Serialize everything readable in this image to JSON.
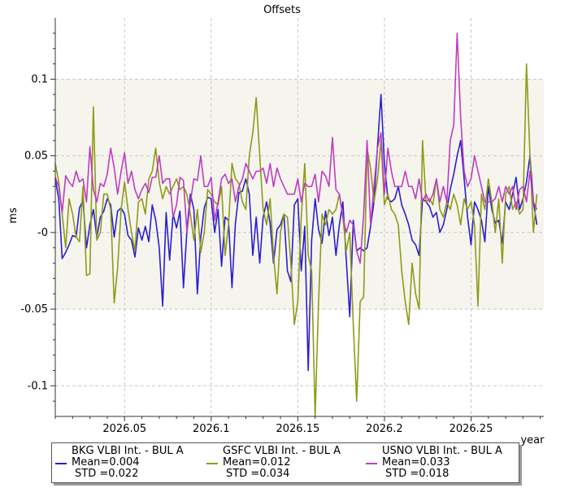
{
  "chart_data": {
    "type": "line",
    "title": "Offsets",
    "xlabel": "year",
    "ylabel": "ms",
    "xlim": [
      2026.01,
      2026.292
    ],
    "ylim": [
      -0.12,
      0.14
    ],
    "xticks": [
      2026.05,
      2026.1,
      2026.15,
      2026.2,
      2026.25
    ],
    "xtick_labels": [
      "2026.05",
      "2026.1",
      "2026.15",
      "2026.2",
      "2026.25"
    ],
    "yticks": [
      -0.1,
      -0.05,
      0,
      0.05,
      0.1
    ],
    "ytick_labels": [
      "-0.1",
      "-0.05",
      "-0",
      "0.05",
      "0.1"
    ],
    "grid": true,
    "legend_position": "bottom",
    "band_range": [
      -0.05,
      0.1
    ],
    "series": [
      {
        "name": "BKG VLBI Int. - BUL A",
        "mean_label": "Mean=0.004",
        "std_label": "STD =0.022",
        "color": "#2a1fd0",
        "x": [
          2026.01,
          2026.012,
          2026.014,
          2026.016,
          2026.018,
          2026.02,
          2026.022,
          2026.024,
          2026.026,
          2026.028,
          2026.03,
          2026.032,
          2026.034,
          2026.036,
          2026.038,
          2026.04,
          2026.042,
          2026.044,
          2026.046,
          2026.048,
          2026.05,
          2026.052,
          2026.054,
          2026.056,
          2026.058,
          2026.06,
          2026.062,
          2026.064,
          2026.066,
          2026.068,
          2026.07,
          2026.072,
          2026.074,
          2026.076,
          2026.078,
          2026.08,
          2026.082,
          2026.084,
          2026.086,
          2026.088,
          2026.09,
          2026.092,
          2026.094,
          2026.096,
          2026.098,
          2026.1,
          2026.102,
          2026.104,
          2026.106,
          2026.108,
          2026.11,
          2026.112,
          2026.114,
          2026.116,
          2026.118,
          2026.12,
          2026.122,
          2026.124,
          2026.126,
          2026.128,
          2026.13,
          2026.132,
          2026.134,
          2026.136,
          2026.138,
          2026.14,
          2026.142,
          2026.144,
          2026.146,
          2026.148,
          2026.15,
          2026.152,
          2026.154,
          2026.156,
          2026.158,
          2026.16,
          2026.162,
          2026.164,
          2026.166,
          2026.168,
          2026.17,
          2026.172,
          2026.174,
          2026.176,
          2026.178,
          2026.18,
          2026.182,
          2026.184,
          2026.186,
          2026.188,
          2026.19,
          2026.192,
          2026.194,
          2026.196,
          2026.198,
          2026.2,
          2026.202,
          2026.204,
          2026.206,
          2026.208,
          2026.21,
          2026.212,
          2026.214,
          2026.216,
          2026.218,
          2026.22,
          2026.222,
          2026.224,
          2026.226,
          2026.228,
          2026.23,
          2026.232,
          2026.234,
          2026.236,
          2026.238,
          2026.24,
          2026.242,
          2026.244,
          2026.246,
          2026.248,
          2026.25,
          2026.252,
          2026.254,
          2026.256,
          2026.258,
          2026.26,
          2026.262,
          2026.264,
          2026.266,
          2026.268,
          2026.27,
          2026.272,
          2026.274,
          2026.276,
          2026.278,
          2026.28,
          2026.282,
          2026.284,
          2026.286,
          2026.288
        ],
        "y": [
          0.035,
          0.022,
          -0.017,
          -0.013,
          -0.008,
          -0.002,
          -0.003,
          0.016,
          0.021,
          -0.01,
          0.005,
          0.015,
          -0.003,
          0.01,
          0.014,
          0.022,
          0.018,
          -0.003,
          0.014,
          0.016,
          0.012,
          -0.002,
          -0.005,
          -0.016,
          0.003,
          -0.005,
          0.004,
          -0.006,
          0.018,
          0.008,
          -0.01,
          -0.048,
          0.013,
          -0.018,
          0.012,
          0.003,
          0.014,
          -0.036,
          0.002,
          0.025,
          0.015,
          -0.04,
          -0.003,
          0.016,
          0.023,
          0.022,
          0.0,
          0.015,
          -0.022,
          0.01,
          0.008,
          -0.036,
          0.006,
          0.026,
          0.027,
          0.035,
          0.025,
          -0.015,
          0.01,
          -0.02,
          0.01,
          0.02,
          0.006,
          -0.02,
          0.002,
          0.005,
          0.012,
          -0.025,
          -0.032,
          0.018,
          0.022,
          -0.025,
          0.004,
          -0.09,
          -0.005,
          0.022,
          0.002,
          -0.007,
          0.014,
          -0.002,
          0.01,
          -0.015,
          0.005,
          0.02,
          -0.018,
          -0.055,
          0.008,
          -0.012,
          -0.01,
          -0.012,
          -0.01,
          0.004,
          0.02,
          0.056,
          0.09,
          0.045,
          0.022,
          0.02,
          0.022,
          0.03,
          0.018,
          0.012,
          0.005,
          -0.005,
          -0.008,
          -0.015,
          0.022,
          0.02,
          0.017,
          0.01,
          0.013,
          0.0,
          0.005,
          0.015,
          0.028,
          0.038,
          0.05,
          0.06,
          0.035,
          0.01,
          -0.008,
          0.02,
          0.015,
          0.008,
          -0.006,
          0.03,
          0.015,
          0.006,
          0.008,
          -0.007,
          0.02,
          0.015,
          0.025,
          0.036,
          0.015,
          0.022,
          0.033,
          0.05,
          0.02,
          0.005
        ]
      },
      {
        "name": "GSFC VLBI Int. - BUL A",
        "mean_label": "Mean=0.012",
        "std_label": "STD =0.034",
        "color": "#8f9a16",
        "x": [
          2026.01,
          2026.012,
          2026.014,
          2026.016,
          2026.018,
          2026.02,
          2026.022,
          2026.024,
          2026.026,
          2026.028,
          2026.03,
          2026.032,
          2026.034,
          2026.036,
          2026.038,
          2026.04,
          2026.042,
          2026.044,
          2026.046,
          2026.048,
          2026.05,
          2026.052,
          2026.054,
          2026.056,
          2026.058,
          2026.06,
          2026.062,
          2026.064,
          2026.066,
          2026.068,
          2026.07,
          2026.072,
          2026.074,
          2026.076,
          2026.078,
          2026.08,
          2026.082,
          2026.084,
          2026.086,
          2026.088,
          2026.09,
          2026.092,
          2026.094,
          2026.096,
          2026.098,
          2026.1,
          2026.102,
          2026.104,
          2026.106,
          2026.108,
          2026.11,
          2026.112,
          2026.114,
          2026.116,
          2026.118,
          2026.12,
          2026.122,
          2026.124,
          2026.126,
          2026.128,
          2026.13,
          2026.132,
          2026.134,
          2026.136,
          2026.138,
          2026.14,
          2026.142,
          2026.144,
          2026.146,
          2026.148,
          2026.15,
          2026.152,
          2026.154,
          2026.156,
          2026.158,
          2026.16,
          2026.162,
          2026.164,
          2026.166,
          2026.168,
          2026.17,
          2026.172,
          2026.174,
          2026.176,
          2026.178,
          2026.18,
          2026.182,
          2026.184,
          2026.186,
          2026.188,
          2026.19,
          2026.192,
          2026.194,
          2026.196,
          2026.198,
          2026.2,
          2026.202,
          2026.204,
          2026.206,
          2026.208,
          2026.21,
          2026.212,
          2026.214,
          2026.216,
          2026.218,
          2026.22,
          2026.222,
          2026.224,
          2026.226,
          2026.228,
          2026.23,
          2026.232,
          2026.234,
          2026.236,
          2026.238,
          2026.24,
          2026.242,
          2026.244,
          2026.246,
          2026.248,
          2026.25,
          2026.252,
          2026.254,
          2026.256,
          2026.258,
          2026.26,
          2026.262,
          2026.264,
          2026.266,
          2026.268,
          2026.27,
          2026.272,
          2026.274,
          2026.276,
          2026.278,
          2026.28,
          2026.282,
          2026.284,
          2026.286,
          2026.288
        ],
        "y": [
          0.045,
          0.033,
          0.012,
          -0.01,
          0.022,
          0.012,
          -0.003,
          -0.006,
          0.03,
          -0.028,
          -0.027,
          0.082,
          -0.005,
          0.0,
          0.025,
          0.025,
          0.015,
          -0.046,
          -0.023,
          0.015,
          0.033,
          0.015,
          0.0,
          -0.012,
          0.02,
          0.022,
          0.012,
          0.035,
          0.04,
          0.055,
          0.033,
          0.022,
          0.03,
          0.025,
          0.03,
          0.035,
          0.028,
          0.03,
          0.025,
          0.012,
          -0.005,
          0.015,
          -0.013,
          0.0,
          0.028,
          0.025,
          0.02,
          0.018,
          0.03,
          -0.015,
          0.005,
          0.045,
          0.035,
          0.032,
          0.02,
          0.015,
          0.05,
          0.065,
          0.088,
          0.05,
          0.015,
          0.005,
          0.022,
          -0.015,
          -0.04,
          0.0,
          0.012,
          0.01,
          -0.02,
          -0.06,
          -0.045,
          0.01,
          0.045,
          -0.015,
          -0.025,
          -0.12,
          -0.045,
          0.012,
          0.005,
          0.015,
          0.012,
          0.015,
          0.025,
          0.01,
          -0.012,
          0.0,
          -0.06,
          -0.11,
          -0.045,
          -0.042,
          0.055,
          0.042,
          0.02,
          0.035,
          0.06,
          0.018,
          0.025,
          0.015,
          0.012,
          0.005,
          -0.025,
          -0.045,
          -0.06,
          -0.02,
          -0.04,
          -0.05,
          0.06,
          0.02,
          0.022,
          0.018,
          0.035,
          0.015,
          0.01,
          0.02,
          0.015,
          0.025,
          0.018,
          0.005,
          0.022,
          0.015,
          0.02,
          0.005,
          -0.048,
          0.025,
          0.015,
          0.035,
          0.02,
          0.0,
          0.022,
          -0.02,
          0.025,
          0.03,
          0.015,
          0.02,
          0.012,
          0.015,
          0.11,
          0.05,
          0.0,
          0.025
        ]
      },
      {
        "name": "USNO VLBI Int. - BUL A",
        "mean_label": "Mean=0.033",
        "std_label": "STD =0.018",
        "color": "#c03cc0",
        "x": [
          2026.01,
          2026.012,
          2026.014,
          2026.016,
          2026.018,
          2026.02,
          2026.022,
          2026.024,
          2026.026,
          2026.028,
          2026.03,
          2026.032,
          2026.034,
          2026.036,
          2026.038,
          2026.04,
          2026.042,
          2026.044,
          2026.046,
          2026.048,
          2026.05,
          2026.052,
          2026.054,
          2026.056,
          2026.058,
          2026.06,
          2026.062,
          2026.064,
          2026.066,
          2026.068,
          2026.07,
          2026.072,
          2026.074,
          2026.076,
          2026.078,
          2026.08,
          2026.082,
          2026.084,
          2026.086,
          2026.088,
          2026.09,
          2026.092,
          2026.094,
          2026.096,
          2026.098,
          2026.1,
          2026.102,
          2026.104,
          2026.106,
          2026.108,
          2026.11,
          2026.112,
          2026.114,
          2026.116,
          2026.118,
          2026.12,
          2026.122,
          2026.124,
          2026.126,
          2026.128,
          2026.13,
          2026.132,
          2026.134,
          2026.136,
          2026.138,
          2026.14,
          2026.142,
          2026.144,
          2026.146,
          2026.148,
          2026.15,
          2026.152,
          2026.154,
          2026.156,
          2026.158,
          2026.16,
          2026.162,
          2026.164,
          2026.166,
          2026.168,
          2026.17,
          2026.172,
          2026.174,
          2026.176,
          2026.178,
          2026.18,
          2026.182,
          2026.184,
          2026.186,
          2026.188,
          2026.19,
          2026.192,
          2026.194,
          2026.196,
          2026.198,
          2026.2,
          2026.202,
          2026.204,
          2026.206,
          2026.208,
          2026.21,
          2026.212,
          2026.214,
          2026.216,
          2026.218,
          2026.22,
          2026.222,
          2026.224,
          2026.226,
          2026.228,
          2026.23,
          2026.232,
          2026.234,
          2026.236,
          2026.238,
          2026.24,
          2026.242,
          2026.244,
          2026.246,
          2026.248,
          2026.25,
          2026.252,
          2026.254,
          2026.256,
          2026.258,
          2026.26,
          2026.262,
          2026.264,
          2026.266,
          2026.268,
          2026.27,
          2026.272,
          2026.274,
          2026.276,
          2026.278,
          2026.28,
          2026.282,
          2026.284,
          2026.286,
          2026.288
        ],
        "y": [
          0.036,
          0.03,
          0.013,
          0.037,
          0.033,
          0.03,
          0.04,
          0.033,
          0.035,
          0.02,
          0.056,
          0.028,
          0.02,
          0.032,
          0.03,
          0.038,
          0.055,
          0.042,
          0.025,
          0.04,
          0.052,
          0.032,
          0.04,
          0.028,
          0.022,
          0.028,
          0.032,
          0.026,
          0.036,
          0.036,
          0.05,
          0.032,
          0.035,
          0.035,
          0.01,
          0.018,
          0.036,
          0.034,
          0.0,
          0.02,
          0.035,
          0.034,
          0.05,
          0.03,
          0.03,
          0.036,
          0.008,
          0.02,
          0.035,
          0.038,
          0.032,
          0.035,
          0.02,
          0.03,
          0.035,
          0.045,
          0.04,
          0.035,
          0.04,
          0.04,
          0.042,
          0.032,
          0.045,
          0.03,
          0.042,
          0.035,
          0.03,
          0.025,
          0.025,
          0.025,
          0.035,
          0.02,
          0.032,
          0.03,
          0.03,
          0.038,
          0.02,
          0.04,
          0.037,
          0.03,
          0.062,
          0.028,
          0.025,
          0.01,
          0.0,
          0.008,
          0.005,
          -0.012,
          -0.02,
          0.012,
          0.06,
          0.005,
          0.03,
          0.055,
          0.065,
          0.025,
          0.055,
          0.04,
          0.03,
          0.03,
          0.03,
          0.04,
          0.03,
          0.03,
          0.022,
          0.035,
          0.02,
          0.025,
          0.02,
          0.025,
          0.035,
          0.02,
          0.03,
          0.02,
          0.06,
          0.07,
          0.13,
          0.075,
          0.04,
          0.03,
          0.035,
          0.05,
          0.04,
          0.03,
          0.02,
          0.02,
          0.02,
          0.022,
          0.03,
          0.02,
          0.03,
          0.025,
          0.03,
          0.015,
          0.028,
          0.03,
          0.02,
          0.04,
          0.02,
          0.015
        ]
      }
    ]
  }
}
